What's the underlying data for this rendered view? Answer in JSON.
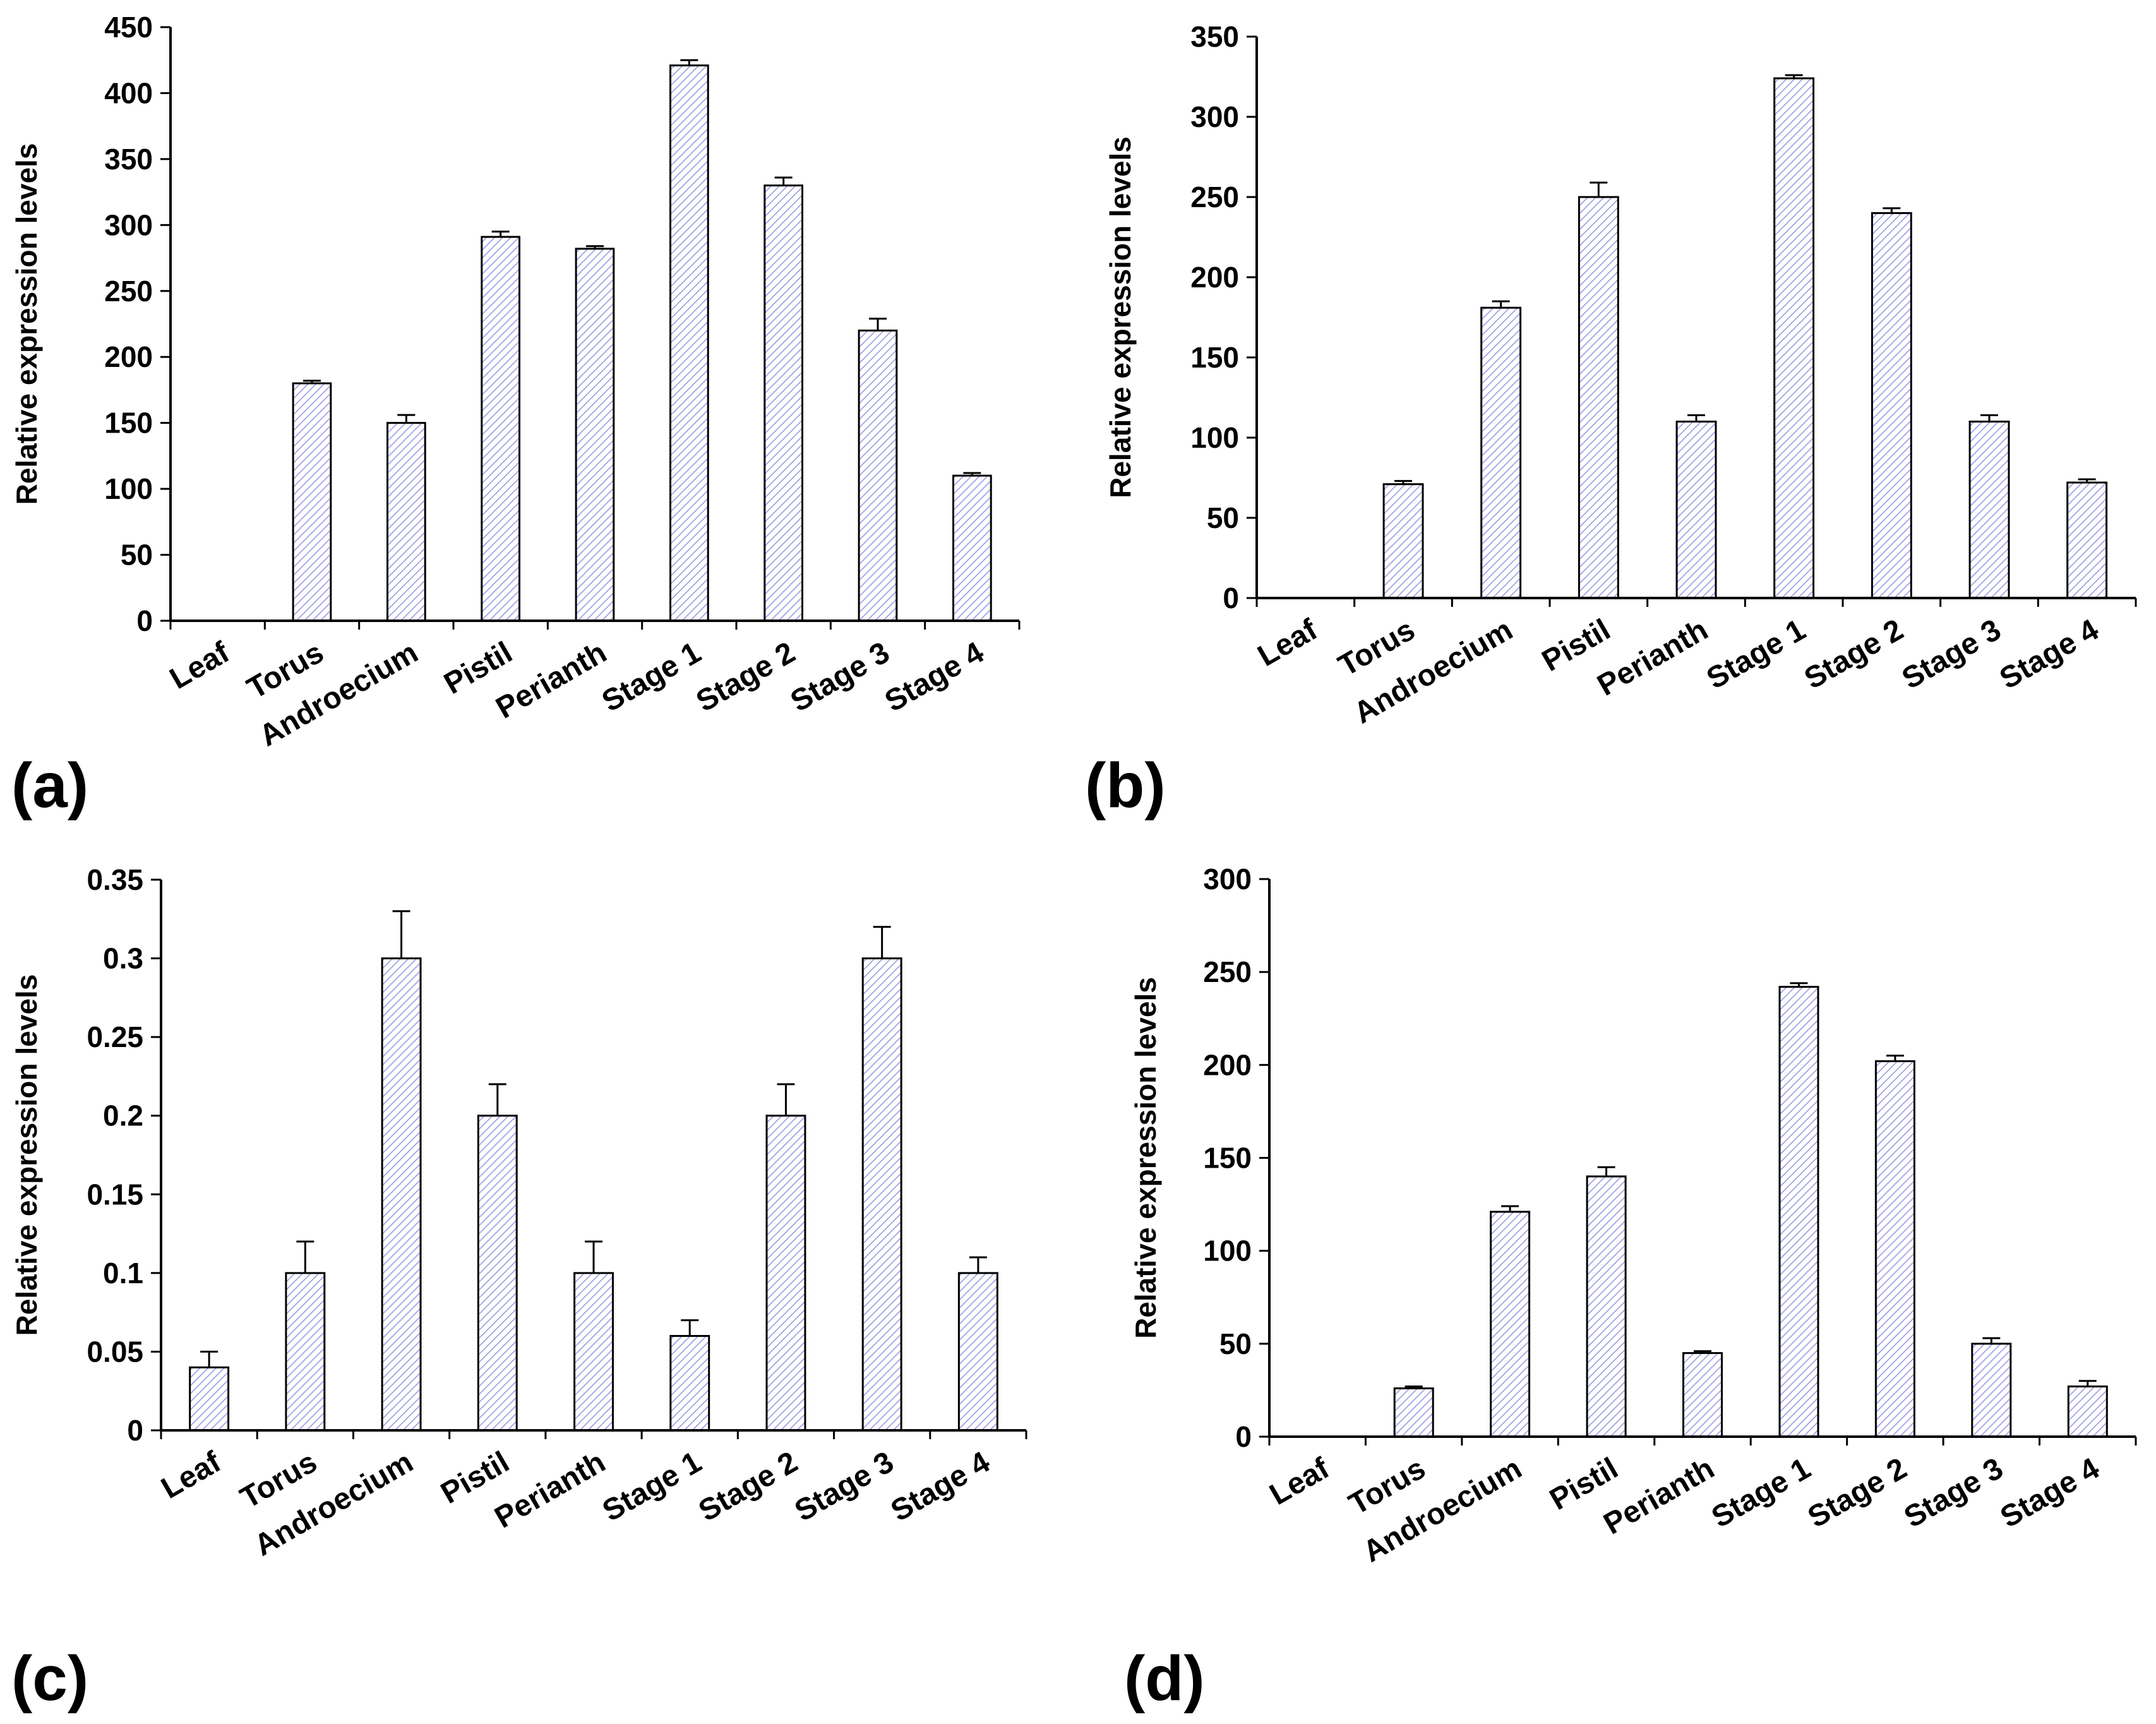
{
  "chart_data": [
    {
      "panel": "(a)",
      "type": "bar",
      "ylabel": "Relative expression levels",
      "categories": [
        "Leaf",
        "Torus",
        "Androecium",
        "Pistil",
        "Perianth",
        "Stage 1",
        "Stage 2",
        "Stage 3",
        "Stage 4"
      ],
      "values": [
        0,
        180,
        150,
        291,
        282,
        421,
        330,
        220,
        110
      ],
      "errors": [
        0,
        2,
        6,
        4,
        2,
        4,
        6,
        9,
        2
      ],
      "ylim": [
        0,
        450
      ],
      "yticks": [
        0,
        50,
        100,
        150,
        200,
        250,
        300,
        350,
        400,
        450
      ],
      "ytick_labels": [
        "0",
        "50",
        "100",
        "150",
        "200",
        "250",
        "300",
        "350",
        "400",
        "450"
      ]
    },
    {
      "panel": "(b)",
      "type": "bar",
      "ylabel": "Relative expression levels",
      "categories": [
        "Leaf",
        "Torus",
        "Androecium",
        "Pistil",
        "Perianth",
        "Stage 1",
        "Stage 2",
        "Stage 3",
        "Stage 4"
      ],
      "values": [
        0,
        71,
        181,
        250,
        110,
        324,
        240,
        110,
        72
      ],
      "errors": [
        0,
        2,
        4,
        9,
        4,
        2,
        3,
        4,
        2
      ],
      "ylim": [
        0,
        350
      ],
      "yticks": [
        0,
        50,
        100,
        150,
        200,
        250,
        300,
        350
      ],
      "ytick_labels": [
        "0",
        "50",
        "100",
        "150",
        "200",
        "250",
        "300",
        "350"
      ]
    },
    {
      "panel": "(c)",
      "type": "bar",
      "ylabel": "Relative expression levels",
      "categories": [
        "Leaf",
        "Torus",
        "Androecium",
        "Pistil",
        "Perianth",
        "Stage 1",
        "Stage 2",
        "Stage 3",
        "Stage 4"
      ],
      "values": [
        0.04,
        0.1,
        0.3,
        0.2,
        0.1,
        0.06,
        0.2,
        0.3,
        0.1
      ],
      "errors": [
        0.01,
        0.02,
        0.03,
        0.02,
        0.02,
        0.01,
        0.02,
        0.02,
        0.01
      ],
      "ylim": [
        0,
        0.35
      ],
      "yticks": [
        0,
        0.05,
        0.1,
        0.15,
        0.2,
        0.25,
        0.3,
        0.35
      ],
      "ytick_labels": [
        "0",
        "0.05",
        "0.1",
        "0.15",
        "0.2",
        "0.25",
        "0.3",
        "0.35"
      ]
    },
    {
      "panel": "(d)",
      "type": "bar",
      "ylabel": "Relative expression levels",
      "categories": [
        "Leaf",
        "Torus",
        "Androecium",
        "Pistil",
        "Perianth",
        "Stage 1",
        "Stage 2",
        "Stage 3",
        "Stage 4"
      ],
      "values": [
        0,
        26,
        121,
        140,
        45,
        242,
        202,
        50,
        27
      ],
      "errors": [
        0,
        1,
        3,
        5,
        1,
        2,
        3,
        3,
        3
      ],
      "ylim": [
        0,
        300
      ],
      "yticks": [
        0,
        50,
        100,
        150,
        200,
        250,
        300
      ],
      "ytick_labels": [
        "0",
        "50",
        "100",
        "150",
        "200",
        "250",
        "300"
      ]
    }
  ],
  "colors": {
    "bar_hatch": "#9a9ae6",
    "bar_fill": "#ffffff",
    "axis": "#000000"
  }
}
